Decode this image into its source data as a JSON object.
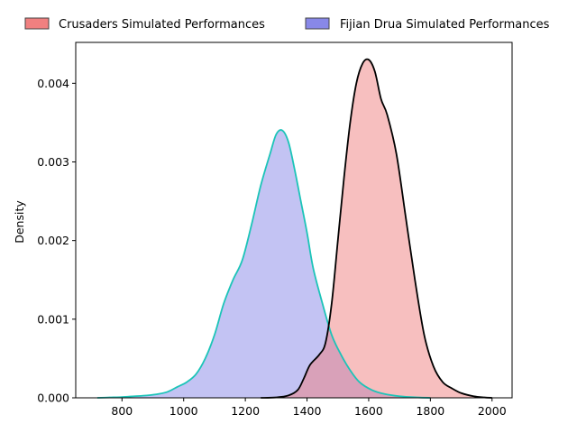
{
  "chart_data": {
    "type": "area",
    "title": "",
    "xlabel": "",
    "ylabel": "Density",
    "xlim": [
      650,
      2065
    ],
    "ylim": [
      0,
      0.00452
    ],
    "x_ticks": [
      800,
      1000,
      1200,
      1400,
      1600,
      1800,
      2000
    ],
    "y_ticks": [
      0,
      0.001,
      0.002,
      0.003,
      0.004
    ],
    "x_tick_labels": [
      "800",
      "1000",
      "1200",
      "1400",
      "1600",
      "1800",
      "2000"
    ],
    "y_tick_labels": [
      "0.000",
      "0.001",
      "0.002",
      "0.003",
      "0.004"
    ],
    "grid": false,
    "legend_position": "top (outside plot)",
    "series": [
      {
        "name": "Crusaders Simulated Performances",
        "fill_color": "#f08080",
        "line_color": "#000000",
        "points": [
          [
            1250,
            0.0
          ],
          [
            1300,
            5e-06
          ],
          [
            1340,
            3e-05
          ],
          [
            1370,
            0.0001
          ],
          [
            1390,
            0.00025
          ],
          [
            1410,
            0.00042
          ],
          [
            1440,
            0.00055
          ],
          [
            1460,
            0.0007
          ],
          [
            1480,
            0.0012
          ],
          [
            1500,
            0.002
          ],
          [
            1520,
            0.0028
          ],
          [
            1540,
            0.0035
          ],
          [
            1560,
            0.004
          ],
          [
            1580,
            0.00425
          ],
          [
            1600,
            0.0043
          ],
          [
            1620,
            0.00415
          ],
          [
            1640,
            0.0038
          ],
          [
            1660,
            0.0036
          ],
          [
            1690,
            0.0031
          ],
          [
            1720,
            0.0023
          ],
          [
            1750,
            0.0015
          ],
          [
            1780,
            0.0008
          ],
          [
            1810,
            0.0004
          ],
          [
            1840,
            0.0002
          ],
          [
            1870,
            0.00012
          ],
          [
            1900,
            6e-05
          ],
          [
            1940,
            2e-05
          ],
          [
            1975,
            5e-06
          ],
          [
            2000,
            0.0
          ]
        ]
      },
      {
        "name": "Fijian Drua Simulated Performances",
        "fill_color": "#8888e8",
        "line_color": "#1cc4b8",
        "points": [
          [
            720,
            0.0
          ],
          [
            760,
            5e-06
          ],
          [
            800,
            1e-05
          ],
          [
            840,
            2e-05
          ],
          [
            880,
            3e-05
          ],
          [
            920,
            5e-05
          ],
          [
            950,
            8e-05
          ],
          [
            980,
            0.00014
          ],
          [
            1010,
            0.0002
          ],
          [
            1040,
            0.0003
          ],
          [
            1070,
            0.0005
          ],
          [
            1100,
            0.0008
          ],
          [
            1130,
            0.0012
          ],
          [
            1160,
            0.0015
          ],
          [
            1190,
            0.00175
          ],
          [
            1220,
            0.0022
          ],
          [
            1250,
            0.0027
          ],
          [
            1280,
            0.0031
          ],
          [
            1300,
            0.00335
          ],
          [
            1320,
            0.0034
          ],
          [
            1340,
            0.00325
          ],
          [
            1360,
            0.0029
          ],
          [
            1380,
            0.0025
          ],
          [
            1400,
            0.0021
          ],
          [
            1420,
            0.00165
          ],
          [
            1450,
            0.0012
          ],
          [
            1480,
            0.0008
          ],
          [
            1510,
            0.00055
          ],
          [
            1540,
            0.00035
          ],
          [
            1570,
            0.0002
          ],
          [
            1610,
            0.0001
          ],
          [
            1650,
            5e-05
          ],
          [
            1700,
            2e-05
          ],
          [
            1760,
            5e-06
          ],
          [
            1800,
            0.0
          ]
        ]
      }
    ]
  }
}
